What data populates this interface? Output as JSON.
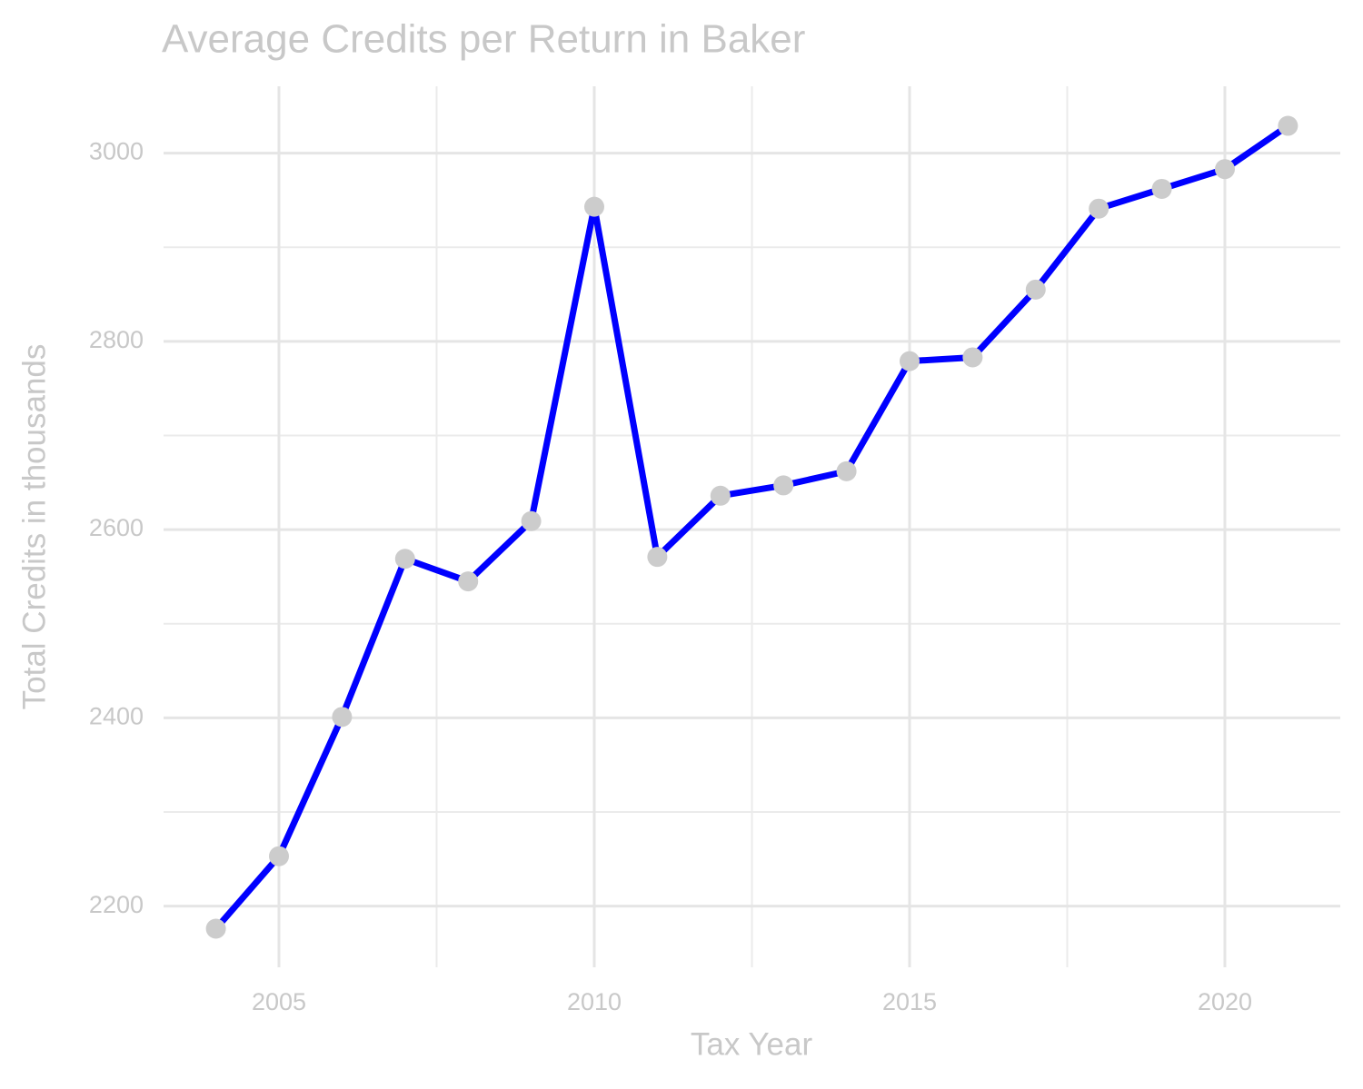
{
  "chart_data": {
    "type": "line",
    "title": "Average Credits per Return in Baker",
    "x_label": "Tax Year",
    "y_label": "Total Credits in thousands",
    "x": [
      2004,
      2005,
      2006,
      2007,
      2008,
      2009,
      2010,
      2011,
      2012,
      2013,
      2014,
      2015,
      2016,
      2017,
      2018,
      2019,
      2020,
      2021
    ],
    "series": [
      {
        "color": "#0000ff",
        "marker_color": "#cccccc",
        "values": [
          2176,
          2253,
          2401,
          2569,
          2545,
          2609,
          2943,
          2571,
          2636,
          2647,
          2662,
          2779,
          2783,
          2855,
          2941,
          2962,
          2983,
          3029
        ]
      }
    ],
    "xlim": [
      2003.17,
      2021.83
    ],
    "ylim": [
      2135,
      3071
    ],
    "xticks": [
      2005,
      2010,
      2015,
      2020
    ],
    "yticks": [
      2200,
      2400,
      2600,
      2800,
      3000
    ],
    "x_minor_grid": [
      2007.5,
      2012.5,
      2017.5
    ],
    "y_minor_grid": [
      2300,
      2500,
      2700,
      2900
    ],
    "grid": true
  }
}
